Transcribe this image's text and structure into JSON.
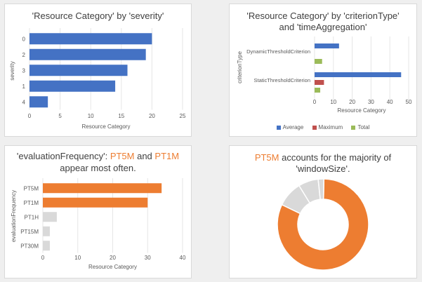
{
  "colors": {
    "blue": "#4472c4",
    "red": "#c0504d",
    "green": "#9bbb59",
    "orange": "#ed7d31",
    "grey": "#d9d9d9",
    "gridline": "#e6e6e6"
  },
  "chart_data": [
    {
      "type": "bar",
      "orientation": "horizontal",
      "title": "'Resource Category' by 'severity'",
      "xlabel": "Resource Category",
      "ylabel": "severity",
      "categories": [
        "0",
        "2",
        "3",
        "1",
        "4"
      ],
      "values": [
        20,
        19,
        16,
        14,
        3
      ],
      "xlim": [
        0,
        25
      ],
      "xticks": [
        "0",
        "5",
        "10",
        "15",
        "20",
        "25"
      ],
      "grid": true
    },
    {
      "type": "bar",
      "orientation": "horizontal",
      "title_line1": "'Resource Category' by 'criterionType'",
      "title_line2": "and 'timeAggregation'",
      "xlabel": "Resource Category",
      "ylabel": "criterionType",
      "categories": [
        "DynamicThresholdCriterion",
        "StaticThresholdCriterion"
      ],
      "series": [
        {
          "name": "Average",
          "values": [
            13,
            46
          ]
        },
        {
          "name": "Maximum",
          "values": [
            0,
            5
          ]
        },
        {
          "name": "Total",
          "values": [
            4,
            3
          ]
        }
      ],
      "xlim": [
        0,
        50
      ],
      "xticks": [
        "0",
        "10",
        "20",
        "30",
        "40",
        "50"
      ],
      "legend": "bottom",
      "grid": true
    },
    {
      "type": "bar",
      "orientation": "horizontal",
      "title_q": "'evaluationFrequency': ",
      "title_hl1": "PT5M",
      "title_and": " and ",
      "title_hl2": "PT1M",
      "title_line2": "appear most often.",
      "xlabel": "Resource Category",
      "ylabel": "evaluationFrequency",
      "categories": [
        "PT5M",
        "PT1M",
        "PT1H",
        "PT15M",
        "PT30M"
      ],
      "values": [
        34,
        30,
        4,
        2,
        2
      ],
      "highlight": [
        true,
        true,
        false,
        false,
        false
      ],
      "xlim": [
        0,
        40
      ],
      "xticks": [
        "0",
        "10",
        "20",
        "30",
        "40"
      ],
      "grid": true
    },
    {
      "type": "pie",
      "style": "donut",
      "title_hl": "PT5M",
      "title_rest": " accounts for the majority of",
      "title_line2": "'windowSize'.",
      "values": [
        81,
        9,
        7,
        2
      ],
      "highlight": [
        true,
        false,
        false,
        false
      ]
    }
  ]
}
